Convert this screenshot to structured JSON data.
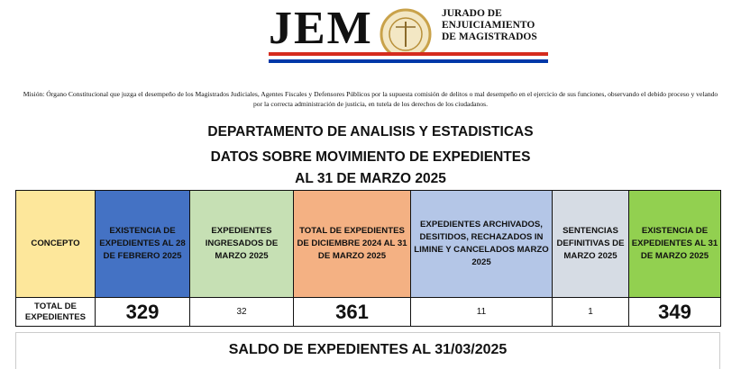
{
  "header": {
    "logo": "JEM",
    "org_lines": [
      "JURADO DE",
      "ENJUICIAMIENTO",
      "DE MAGISTRADOS"
    ]
  },
  "mission": "Misión: Órgano Constitucional que juzga el desempeño de los Magistrados Judiciales, Agentes Fiscales y Defensores Públicos por la supuesta comisión de delitos o mal desempeño en el ejercicio de sus funciones, observando el debido proceso y velando por la correcta administración de justicia, en tutela de los derechos de los ciudadanos.",
  "titles": [
    "DEPARTAMENTO DE ANALISIS Y ESTADISTICAS",
    "DATOS SOBRE MOVIMIENTO DE EXPEDIENTES",
    "AL 31 DE MARZO 2025"
  ],
  "table": {
    "headers": [
      "CONCEPTO",
      "EXISTENCIA DE EXPEDIENTES AL 28 DE FEBRERO 2025",
      "EXPEDIENTES INGRESADOS DE MARZO 2025",
      "TOTAL DE EXPEDIENTES DE DICIEMBRE 2024 AL 31 DE MARZO 2025",
      "EXPEDIENTES ARCHIVADOS, DESITIDOS, RECHAZADOS IN LIMINE Y CANCELADOS MARZO 2025",
      "SENTENCIAS DEFINITIVAS DE MARZO 2025",
      "EXISTENCIA DE EXPEDIENTES AL 31 DE MARZO  2025"
    ],
    "rows": [
      [
        "TOTAL DE EXPEDIENTES",
        329,
        32,
        361,
        11,
        1,
        349
      ]
    ]
  },
  "footer_title": "SALDO DE EXPEDIENTES AL 31/03/2025"
}
